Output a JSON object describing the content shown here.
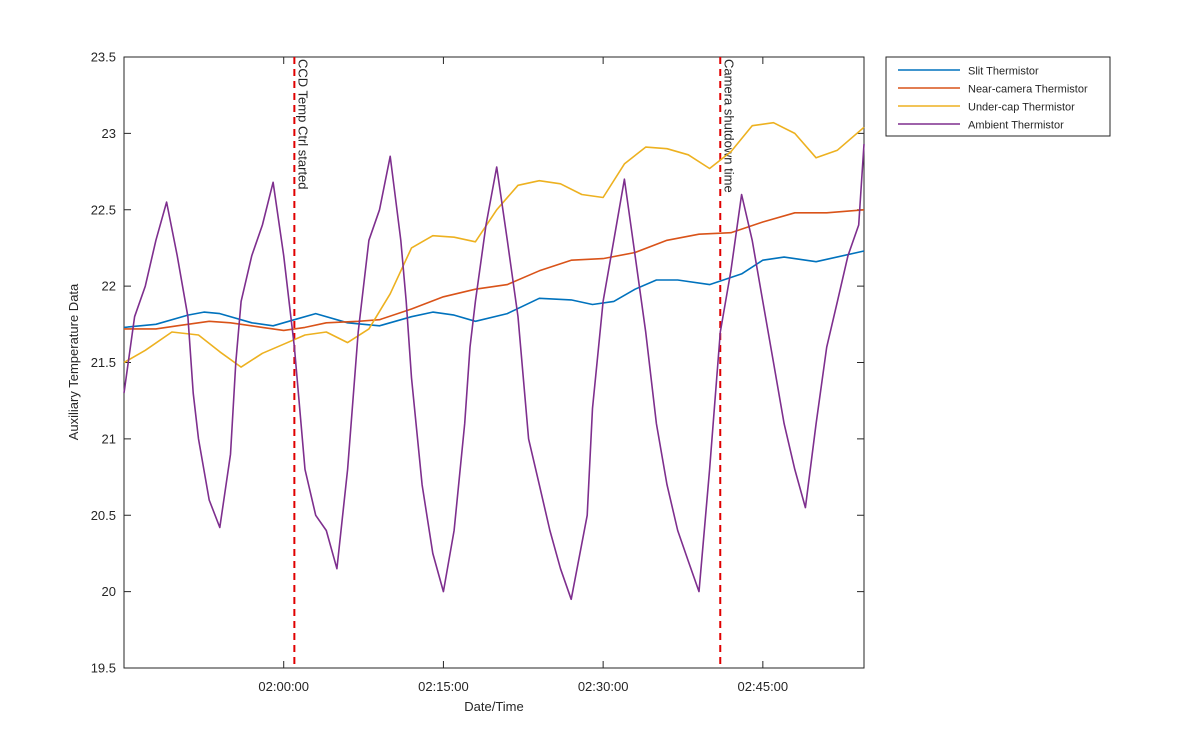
{
  "chart_data": {
    "type": "line",
    "xlabel": "Date/Time",
    "ylabel": "Auxiliary Temperature Data",
    "x_unit": "time (HH:MM:SS)",
    "xlim": [
      "01:45:00",
      "02:54:30"
    ],
    "ylim": [
      19.5,
      23.5
    ],
    "x_ticks": [
      "02:00:00",
      "02:15:00",
      "02:30:00",
      "02:45:00"
    ],
    "y_ticks": [
      "19.5",
      "20",
      "20.5",
      "21",
      "21.5",
      "22",
      "22.5",
      "23",
      "23.5"
    ],
    "grid": false,
    "legend_position": "outside-top-right",
    "series": [
      {
        "name": "Slit Thermistor",
        "color": "#0072BD",
        "x": [
          "01:45:00",
          "01:48:00",
          "01:51:00",
          "01:52:30",
          "01:54:00",
          "01:57:00",
          "01:59:00",
          "02:01:00",
          "02:03:00",
          "02:06:00",
          "02:09:00",
          "02:12:00",
          "02:14:00",
          "02:16:00",
          "02:18:00",
          "02:21:00",
          "02:24:00",
          "02:27:00",
          "02:29:00",
          "02:31:00",
          "02:33:00",
          "02:35:00",
          "02:37:00",
          "02:40:00",
          "02:43:00",
          "02:45:00",
          "02:47:00",
          "02:50:00",
          "02:54:30"
        ],
        "y": [
          21.73,
          21.75,
          21.81,
          21.83,
          21.82,
          21.76,
          21.74,
          21.78,
          21.82,
          21.76,
          21.74,
          21.8,
          21.83,
          21.81,
          21.77,
          21.82,
          21.92,
          21.91,
          21.88,
          21.9,
          21.98,
          22.04,
          22.04,
          22.01,
          22.08,
          22.17,
          22.19,
          22.16,
          22.23
        ]
      },
      {
        "name": "Near-camera Thermistor",
        "color": "#D95319",
        "x": [
          "01:45:00",
          "01:48:00",
          "01:50:00",
          "01:53:00",
          "01:55:00",
          "01:58:00",
          "02:00:00",
          "02:02:00",
          "02:04:00",
          "02:07:00",
          "02:09:00",
          "02:12:00",
          "02:15:00",
          "02:18:00",
          "02:21:00",
          "02:24:00",
          "02:27:00",
          "02:30:00",
          "02:33:00",
          "02:36:00",
          "02:39:00",
          "02:42:00",
          "02:45:00",
          "02:48:00",
          "02:51:00",
          "02:54:30"
        ],
        "y": [
          21.72,
          21.72,
          21.74,
          21.77,
          21.76,
          21.73,
          21.71,
          21.73,
          21.76,
          21.77,
          21.78,
          21.85,
          21.93,
          21.98,
          22.01,
          22.1,
          22.17,
          22.18,
          22.22,
          22.3,
          22.34,
          22.35,
          22.42,
          22.48,
          22.48,
          22.5
        ]
      },
      {
        "name": "Under-cap Thermistor",
        "color": "#EDB120",
        "x": [
          "01:45:00",
          "01:47:00",
          "01:49:30",
          "01:52:00",
          "01:54:00",
          "01:56:00",
          "01:58:00",
          "02:00:00",
          "02:02:00",
          "02:04:00",
          "02:06:00",
          "02:08:00",
          "02:10:00",
          "02:12:00",
          "02:14:00",
          "02:16:00",
          "02:18:00",
          "02:20:00",
          "02:22:00",
          "02:24:00",
          "02:26:00",
          "02:28:00",
          "02:30:00",
          "02:32:00",
          "02:34:00",
          "02:36:00",
          "02:38:00",
          "02:40:00",
          "02:42:00",
          "02:44:00",
          "02:46:00",
          "02:48:00",
          "02:50:00",
          "02:52:00",
          "02:54:30"
        ],
        "y": [
          21.5,
          21.58,
          21.7,
          21.68,
          21.57,
          21.47,
          21.56,
          21.62,
          21.68,
          21.7,
          21.63,
          21.72,
          21.95,
          22.25,
          22.33,
          22.32,
          22.29,
          22.5,
          22.66,
          22.69,
          22.67,
          22.6,
          22.58,
          22.8,
          22.91,
          22.9,
          22.86,
          22.77,
          22.88,
          23.05,
          23.07,
          23.0,
          22.84,
          22.89,
          23.04
        ]
      },
      {
        "name": "Ambient Thermistor",
        "color": "#7E2F8E",
        "x": [
          "01:45:00",
          "01:46:00",
          "01:47:00",
          "01:48:00",
          "01:49:00",
          "01:50:00",
          "01:51:00",
          "01:51:30",
          "01:52:00",
          "01:53:00",
          "01:54:00",
          "01:55:00",
          "01:55:30",
          "01:56:00",
          "01:57:00",
          "01:58:00",
          "01:59:00",
          "02:00:00",
          "02:01:00",
          "02:02:00",
          "02:03:00",
          "02:04:00",
          "02:05:00",
          "02:06:00",
          "02:07:00",
          "02:08:00",
          "02:09:00",
          "02:10:00",
          "02:11:00",
          "02:11:30",
          "02:12:00",
          "02:13:00",
          "02:14:00",
          "02:15:00",
          "02:16:00",
          "02:17:00",
          "02:17:30",
          "02:18:00",
          "02:19:00",
          "02:20:00",
          "02:21:00",
          "02:22:00",
          "02:22:30",
          "02:23:00",
          "02:24:00",
          "02:25:00",
          "02:26:00",
          "02:27:00",
          "02:28:30",
          "02:29:00",
          "02:30:00",
          "02:31:00",
          "02:32:00",
          "02:33:00",
          "02:34:00",
          "02:35:00",
          "02:36:00",
          "02:37:00",
          "02:38:00",
          "02:39:00",
          "02:40:00",
          "02:41:00",
          "02:42:00",
          "02:43:00",
          "02:44:00",
          "02:45:00",
          "02:46:00",
          "02:47:00",
          "02:48:00",
          "02:49:00",
          "02:50:00",
          "02:51:00",
          "02:52:00",
          "02:53:00",
          "02:54:00",
          "02:54:30"
        ],
        "y": [
          21.3,
          21.8,
          22.0,
          22.3,
          22.55,
          22.2,
          21.8,
          21.3,
          21.0,
          20.6,
          20.42,
          20.9,
          21.5,
          21.9,
          22.2,
          22.4,
          22.68,
          22.2,
          21.6,
          20.8,
          20.5,
          20.4,
          20.15,
          20.8,
          21.7,
          22.3,
          22.5,
          22.85,
          22.3,
          21.9,
          21.4,
          20.7,
          20.25,
          20.0,
          20.4,
          21.1,
          21.6,
          21.9,
          22.4,
          22.78,
          22.3,
          21.8,
          21.4,
          21.0,
          20.7,
          20.4,
          20.15,
          19.95,
          20.5,
          21.2,
          21.9,
          22.3,
          22.7,
          22.2,
          21.7,
          21.1,
          20.7,
          20.4,
          20.2,
          20.0,
          20.8,
          21.7,
          22.1,
          22.6,
          22.3,
          21.9,
          21.5,
          21.1,
          20.8,
          20.55,
          21.1,
          21.6,
          21.9,
          22.2,
          22.4,
          22.93
        ]
      }
    ],
    "annotations": [
      {
        "label": "CCD Temp Ctrl started",
        "x": "02:01:00",
        "color": "#E00000",
        "style": "dashed-vertical-line"
      },
      {
        "label": "Camera shutdown time",
        "x": "02:41:00",
        "color": "#E00000",
        "style": "dashed-vertical-line"
      }
    ]
  }
}
